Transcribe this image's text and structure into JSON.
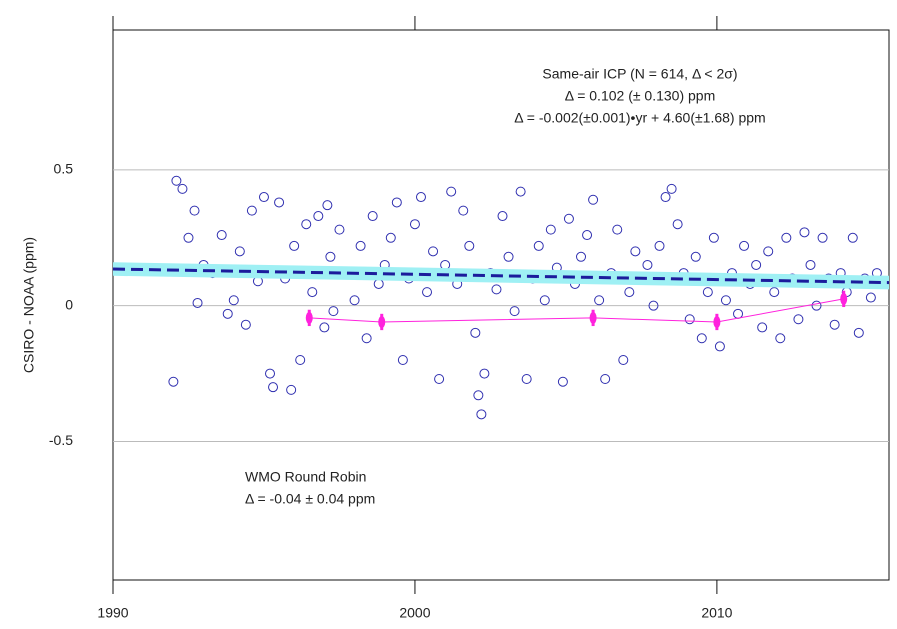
{
  "chart_data": {
    "type": "scatter",
    "ylabel": "CSIRO - NOAA  (ppm)",
    "xlim": [
      1990,
      2015.7
    ],
    "ylim": [
      -1.01,
      1.015
    ],
    "xticks": [
      1990,
      2000,
      2010
    ],
    "yticks": [
      0.5,
      0,
      -0.5
    ],
    "grid": true,
    "annotations": [
      "Same-air ICP (N = 614, Δ < 2σ)",
      "Δ = 0.102 (± 0.130) ppm",
      "Δ = -0.002(±0.001)•yr + 4.60(±1.68) ppm",
      "WMO Round Robin",
      "Δ = -0.04 ± 0.04 ppm"
    ],
    "annotation_colors": [
      "#2b2bc0",
      "#ff22dd"
    ],
    "series": [
      {
        "marker": "open-circle",
        "color": "#3030b0",
        "x": [
          1992.0,
          1992.1,
          1992.3,
          1992.5,
          1992.7,
          1992.8,
          1993.0,
          1993.3,
          1993.6,
          1993.8,
          1994.0,
          1994.2,
          1994.4,
          1994.6,
          1994.8,
          1995.0,
          1995.2,
          1995.3,
          1995.5,
          1995.7,
          1995.9,
          1996.0,
          1996.2,
          1996.4,
          1996.6,
          1996.8,
          1997.0,
          1997.1,
          1997.2,
          1997.3,
          1997.5,
          1997.8,
          1998.0,
          1998.2,
          1998.4,
          1998.6,
          1998.8,
          1999.0,
          1999.2,
          1999.4,
          1999.6,
          1999.8,
          2000.0,
          2000.2,
          2000.4,
          2000.6,
          2000.8,
          2001.0,
          2001.2,
          2001.4,
          2001.6,
          2001.8,
          2002.0,
          2002.1,
          2002.2,
          2002.3,
          2002.5,
          2002.7,
          2002.9,
          2003.1,
          2003.3,
          2003.5,
          2003.7,
          2003.9,
          2004.1,
          2004.3,
          2004.5,
          2004.7,
          2004.9,
          2005.1,
          2005.3,
          2005.5,
          2005.7,
          2005.9,
          2006.1,
          2006.3,
          2006.5,
          2006.7,
          2006.9,
          2007.1,
          2007.3,
          2007.5,
          2007.7,
          2007.9,
          2008.1,
          2008.3,
          2008.5,
          2008.7,
          2008.9,
          2009.1,
          2009.3,
          2009.5,
          2009.7,
          2009.9,
          2010.1,
          2010.3,
          2010.5,
          2010.7,
          2010.9,
          2011.1,
          2011.3,
          2011.5,
          2011.7,
          2011.9,
          2012.1,
          2012.3,
          2012.5,
          2012.7,
          2012.9,
          2013.1,
          2013.3,
          2013.5,
          2013.7,
          2013.9,
          2014.1,
          2014.3,
          2014.5,
          2014.7,
          2014.9,
          2015.1,
          2015.3,
          2015.5
        ],
        "y": [
          -0.28,
          0.46,
          0.43,
          0.25,
          0.35,
          0.01,
          0.15,
          0.12,
          0.26,
          -0.03,
          0.02,
          0.2,
          -0.07,
          0.35,
          0.09,
          0.4,
          -0.25,
          -0.3,
          0.38,
          0.1,
          -0.31,
          0.22,
          -0.2,
          0.3,
          0.05,
          0.33,
          -0.08,
          0.37,
          0.18,
          -0.02,
          0.28,
          0.12,
          0.02,
          0.22,
          -0.12,
          0.33,
          0.08,
          0.15,
          0.25,
          0.38,
          -0.2,
          0.1,
          0.3,
          0.4,
          0.05,
          0.2,
          -0.27,
          0.15,
          0.42,
          0.08,
          0.35,
          0.22,
          -0.1,
          -0.33,
          -0.4,
          -0.25,
          0.12,
          0.06,
          0.33,
          0.18,
          -0.02,
          0.42,
          -0.27,
          0.1,
          0.22,
          0.02,
          0.28,
          0.14,
          -0.28,
          0.32,
          0.08,
          0.18,
          0.26,
          0.39,
          0.02,
          -0.27,
          0.12,
          0.28,
          -0.2,
          0.05,
          0.2,
          0.1,
          0.15,
          0.0,
          0.22,
          0.4,
          0.43,
          0.3,
          0.12,
          -0.05,
          0.18,
          -0.12,
          0.05,
          0.25,
          -0.15,
          0.02,
          0.12,
          -0.03,
          0.22,
          0.08,
          0.15,
          -0.08,
          0.2,
          0.05,
          -0.12,
          0.25,
          0.1,
          -0.05,
          0.27,
          0.15,
          0.0,
          0.25,
          0.1,
          -0.07,
          0.12,
          0.05,
          0.25,
          -0.1,
          0.1,
          0.03,
          0.12,
          0.08
        ]
      },
      {
        "marker": "dashed-line",
        "color": "#1c1c9c",
        "band_color": "#9ff0f4",
        "x": [
          1990,
          2015.7
        ],
        "y": [
          0.135,
          0.085
        ],
        "lower": [
          0.11,
          0.06
        ],
        "upper": [
          0.16,
          0.11
        ]
      },
      {
        "marker": "diamond",
        "color": "#ff22dd",
        "x": [
          1996.5,
          1998.9,
          2005.9,
          2010.0,
          2014.2
        ],
        "y": [
          -0.045,
          -0.06,
          -0.045,
          -0.06,
          0.025
        ],
        "errors": [
          0.03,
          0.03,
          0.03,
          0.03,
          0.03
        ]
      }
    ]
  }
}
